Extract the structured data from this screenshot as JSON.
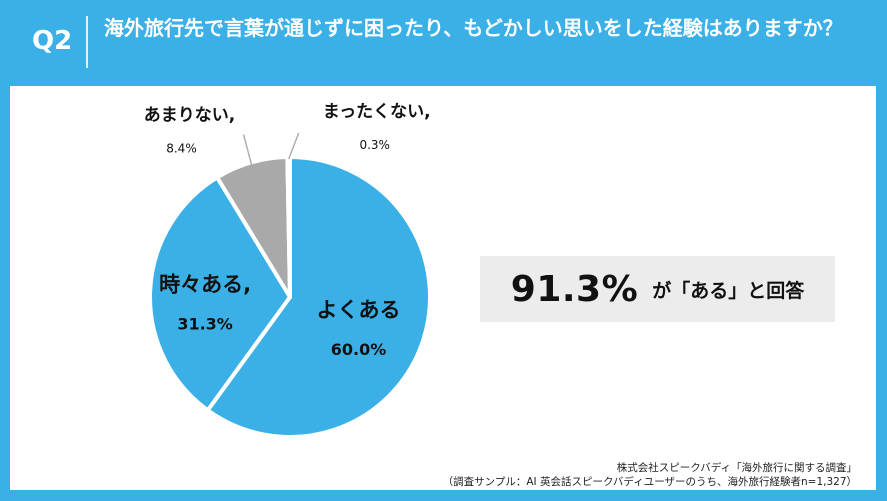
{
  "header": {
    "q_label": "Q2",
    "question": "海外旅行先で言葉が通じずに困ったり、もどかしい思いをした経験はありますか？"
  },
  "chart_data": {
    "type": "pie",
    "title": "",
    "slices": [
      {
        "label": "よくある",
        "value": 60.0,
        "value_label": "60.0%",
        "color": "#3bb0e6"
      },
      {
        "label": "時々ある,",
        "value": 31.3,
        "value_label": "31.3%",
        "color": "#3bb0e6"
      },
      {
        "label": "あまりない,",
        "value": 8.4,
        "value_label": "8.4%",
        "color": "#a9a9a9"
      },
      {
        "label": "まったくない,",
        "value": 0.3,
        "value_label": "0.3%",
        "color": "#a9a9a9"
      }
    ]
  },
  "summary": {
    "percent": "91.3%",
    "text": "が「ある」と回答"
  },
  "source": {
    "line1": "株式会社スピークバディ「海外旅行に関する調査」",
    "line2": "（調査サンプル：AI 英会話スピークバディユーザーのうち、海外旅行経験者n=1,327）"
  },
  "colors": {
    "accent": "#3bb0e6",
    "grey": "#a9a9a9",
    "panel": "#ffffff"
  }
}
